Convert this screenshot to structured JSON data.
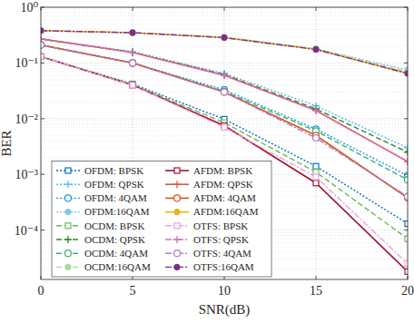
{
  "chart_data": {
    "type": "line",
    "x_label": "SNR(dB)",
    "y_label": "BER",
    "x": [
      0,
      5,
      10,
      15,
      20
    ],
    "xlim": [
      0,
      20
    ],
    "xticks": [
      0,
      5,
      10,
      15,
      20
    ],
    "ylim": [
      1.3e-05,
      1
    ],
    "yticks": [
      {
        "value": 0.0001,
        "label": "10⁻⁴"
      },
      {
        "value": 0.001,
        "label": "10⁻³"
      },
      {
        "value": 0.01,
        "label": "10⁻²"
      },
      {
        "value": 0.1,
        "label": "10⁻¹"
      },
      {
        "value": 1,
        "label": "10⁰"
      }
    ],
    "log": "y",
    "grid": true,
    "legend": "lower left",
    "series": [
      {
        "name": "OFDM: BPSK",
        "color": "#0072bd",
        "marker": "square",
        "line_style": "dotted",
        "values": [
          0.13,
          0.042,
          0.0098,
          0.0014,
          0.00013
        ]
      },
      {
        "name": "OFDM: QPSK",
        "color": "#4dbeee",
        "marker": "plus",
        "line_style": "dotted",
        "values": [
          0.27,
          0.16,
          0.065,
          0.017,
          0.003
        ]
      },
      {
        "name": "OFDM: 4QAM",
        "color": "#1e9be0",
        "marker": "circle",
        "line_style": "dotted",
        "values": [
          0.21,
          0.1,
          0.033,
          0.0065,
          0.00095
        ]
      },
      {
        "name": "OFDM:16QAM",
        "color": "#80c8f0",
        "marker": "dot",
        "line_style": "dotted",
        "values": [
          0.38,
          0.35,
          0.29,
          0.18,
          0.075
        ]
      },
      {
        "name": "OCDM: BPSK",
        "color": "#66bb55",
        "marker": "square",
        "line_style": "dashed",
        "values": [
          0.13,
          0.041,
          0.0085,
          0.0011,
          7e-05
        ]
      },
      {
        "name": "OCDM: QPSK",
        "color": "#2e8b2e",
        "marker": "plus",
        "line_style": "dashed",
        "values": [
          0.27,
          0.155,
          0.062,
          0.015,
          0.0025
        ]
      },
      {
        "name": "OCDM: 4QAM",
        "color": "#3cb371",
        "marker": "circle",
        "line_style": "dashed",
        "values": [
          0.21,
          0.1,
          0.031,
          0.006,
          0.0008
        ]
      },
      {
        "name": "OCDM:16QAM",
        "color": "#a6dca0",
        "marker": "dot",
        "line_style": "dashed",
        "values": [
          0.38,
          0.35,
          0.29,
          0.18,
          0.07
        ]
      },
      {
        "name": "AFDM: BPSK",
        "color": "#a2142f",
        "marker": "square",
        "line_style": "solid",
        "values": [
          0.13,
          0.04,
          0.0075,
          0.0007,
          1.8e-05
        ]
      },
      {
        "name": "AFDM: QPSK",
        "color": "#e8514a",
        "marker": "plus",
        "line_style": "solid",
        "values": [
          0.27,
          0.155,
          0.06,
          0.014,
          0.0017
        ]
      },
      {
        "name": "AFDM: 4QAM",
        "color": "#d95319",
        "marker": "circle",
        "line_style": "solid",
        "values": [
          0.21,
          0.1,
          0.03,
          0.005,
          0.00038
        ]
      },
      {
        "name": "AFDM:16QAM",
        "color": "#edb120",
        "marker": "dot",
        "line_style": "solid",
        "values": [
          0.38,
          0.35,
          0.285,
          0.175,
          0.065
        ]
      },
      {
        "name": "OTFS: BPSK",
        "color": "#f0a0d8",
        "marker": "square",
        "line_style": "dashdot",
        "values": [
          0.13,
          0.04,
          0.007,
          0.0009,
          2.5e-05
        ]
      },
      {
        "name": "OTFS: QPSK",
        "color": "#d070c0",
        "marker": "plus",
        "line_style": "dashdot",
        "values": [
          0.27,
          0.155,
          0.06,
          0.014,
          0.0017
        ]
      },
      {
        "name": "OTFS: 4QAM",
        "color": "#b07cc6",
        "marker": "circle",
        "line_style": "dashdot",
        "values": [
          0.21,
          0.1,
          0.03,
          0.0045,
          0.0004
        ]
      },
      {
        "name": "OTFS:16QAM",
        "color": "#7e2f8e",
        "marker": "dot",
        "line_style": "dashdot",
        "values": [
          0.38,
          0.35,
          0.285,
          0.175,
          0.065
        ]
      }
    ]
  }
}
